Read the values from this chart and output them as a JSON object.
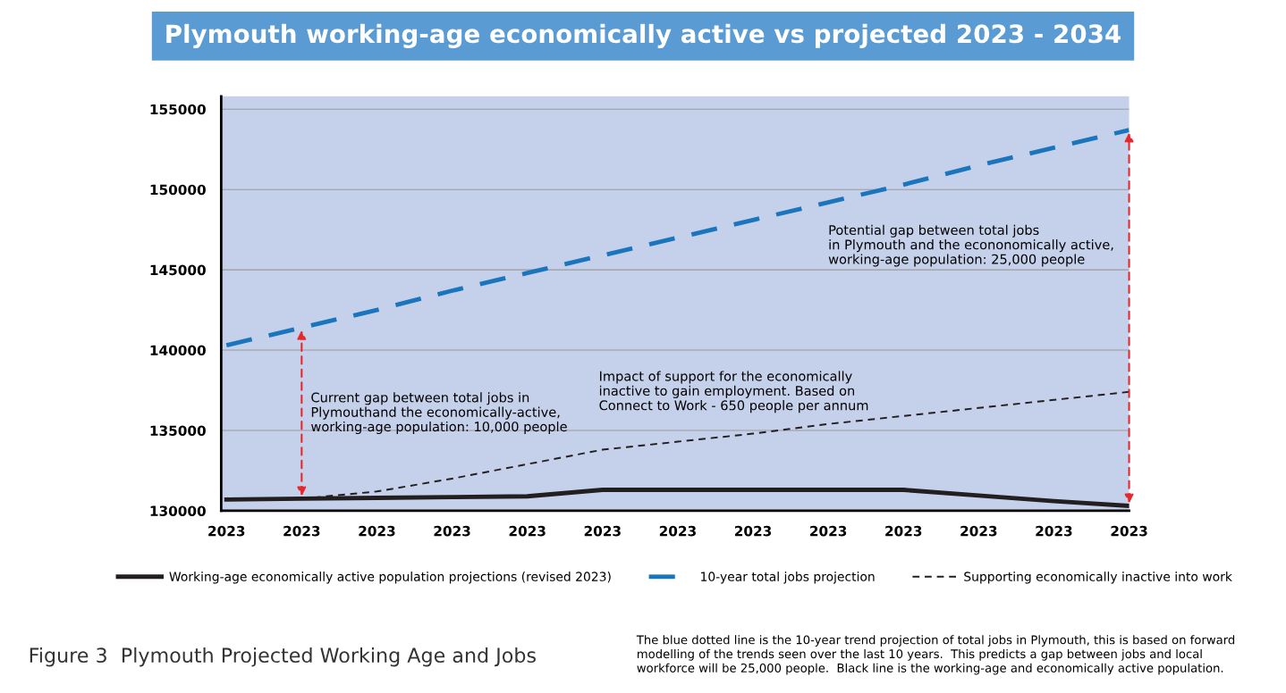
{
  "chart_data": {
    "type": "line",
    "title": "Plymouth working-age economically active vs projected 2023 - 2034",
    "categories": [
      "2023",
      "2023",
      "2023",
      "2023",
      "2023",
      "2023",
      "2023",
      "2023",
      "2023",
      "2023",
      "2023",
      "2023",
      "2023"
    ],
    "series": [
      {
        "name": "Working-age economically active population projections (revised 2023)",
        "color": "#231f20",
        "line_style": "solid",
        "values": [
          130700,
          130750,
          130800,
          130850,
          130900,
          131300,
          131300,
          131300,
          131300,
          131300,
          130950,
          130600,
          130300
        ]
      },
      {
        "name": "10-year total jobs projection",
        "color": "#1a75bc",
        "line_style": "dashed",
        "values": [
          140300,
          141400,
          142500,
          143700,
          144800,
          145900,
          147000,
          148100,
          149200,
          150300,
          151500,
          152600,
          153700
        ]
      },
      {
        "name": "Supporting economically inactive into work",
        "color": "#231f20",
        "line_style": "dotted",
        "values": [
          null,
          130750,
          131200,
          132000,
          132900,
          133800,
          134300,
          134800,
          135400,
          135900,
          136400,
          136900,
          137400
        ]
      }
    ],
    "ylim": [
      130000,
      155800
    ],
    "yticks": [
      130000,
      135000,
      140000,
      145000,
      150000,
      155000
    ],
    "grid": "y",
    "legend": "bottom",
    "marker": "none",
    "annotations": [
      "Current gap between total jobs in\nPlymouthand the economically-active,\nworking-age population: 10,000 people",
      "Potential gap between total jobs\nin Plymouth and the econonomically active,\nworking-age population: 25,000 people",
      "Impact of support for the economically\ninactive to gain employment. Based on\nConnect to Work - 650 people per annum",
      "Figure 3  Plymouth Projected Working Age and Jobs",
      "The blue dotted line is the 10-year trend projection of total jobs in Plymouth, this is based on forward\nmodelling of the trends seen over the last 10 years.  This predicts a gap between jobs and local\nworkforce will be 25,000 people.  Black line is the working-age and economically active population."
    ]
  }
}
